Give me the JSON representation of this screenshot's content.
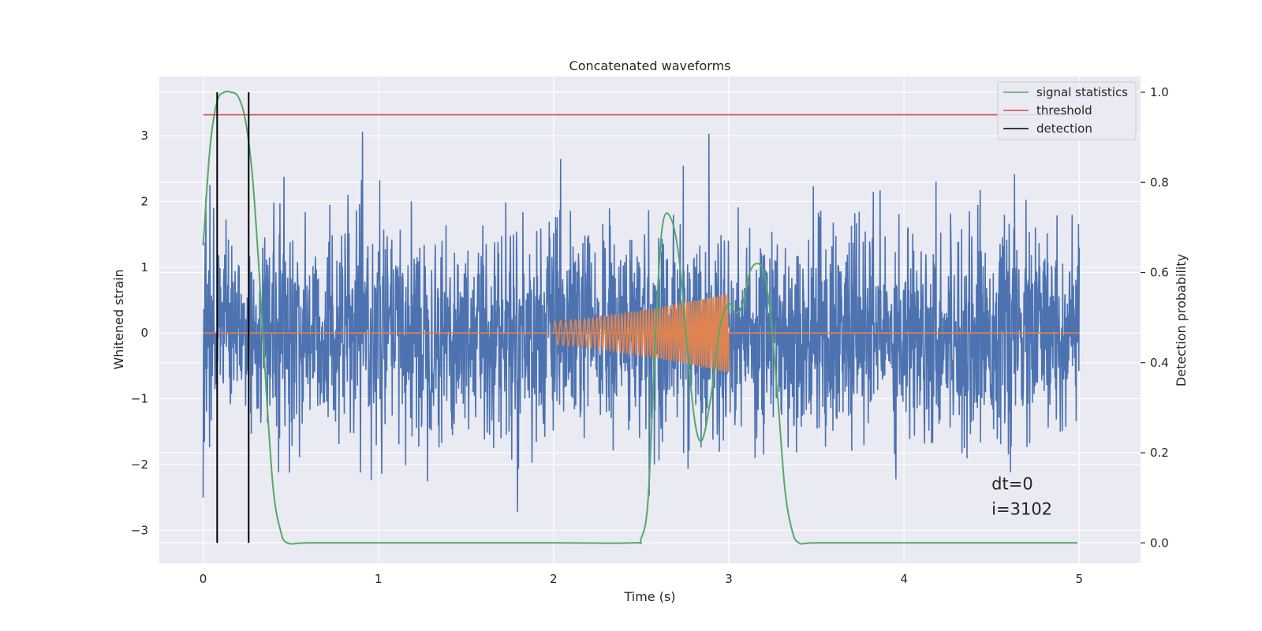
{
  "chart_data": {
    "type": "line",
    "title": "Concatenated waveforms",
    "xlabel": "Time (s)",
    "ylabel": "Whitened strain",
    "y2label": "Detection probability",
    "xlim": [
      -0.25,
      5.35
    ],
    "ylim": [
      -3.5,
      3.9
    ],
    "y2lim": [
      -0.045,
      1.035
    ],
    "x_ticks": [
      0,
      1,
      2,
      3,
      4,
      5
    ],
    "y_ticks": [
      -3,
      -2,
      -1,
      0,
      1,
      2,
      3
    ],
    "y2_ticks": [
      0.0,
      0.2,
      0.4,
      0.6,
      0.8,
      1.0
    ],
    "grid": true,
    "legend_position": "top-right",
    "colors": {
      "strain": "#4c72b0",
      "template": "#dd8452",
      "signal_statistics": "#55a868",
      "threshold": "#c44e52",
      "detection": "#000000",
      "background": "#eaeaf2"
    },
    "series": [
      {
        "name": "",
        "kind": "noise",
        "x_range": [
          0,
          5
        ],
        "approx_range": [
          -3.2,
          3.6
        ],
        "approx_std": 0.8
      },
      {
        "name": "",
        "kind": "chirp",
        "x_range": [
          2,
          3
        ],
        "flat_value": 0,
        "amplitude_start": 0.18,
        "amplitude_end": 0.6,
        "freq_start_hz": 30,
        "freq_end_hz": 90
      },
      {
        "name": "signal statistics",
        "axis": "right",
        "x": [
          0.0,
          0.04,
          0.08,
          0.12,
          0.16,
          0.2,
          0.24,
          0.28,
          0.32,
          0.36,
          0.4,
          0.44,
          0.48,
          0.6,
          1.0,
          2.0,
          2.45,
          2.5,
          2.54,
          2.58,
          2.62,
          2.67,
          2.72,
          2.77,
          2.81,
          2.85,
          2.9,
          2.95,
          3.0,
          3.04,
          3.08,
          3.12,
          3.16,
          3.2,
          3.24,
          3.28,
          3.32,
          3.36,
          3.4,
          3.5,
          4.0,
          4.5,
          4.99
        ],
        "y": [
          0.66,
          0.88,
          0.98,
          1.0,
          1.0,
          0.99,
          0.94,
          0.82,
          0.6,
          0.34,
          0.12,
          0.03,
          0.0,
          0.0,
          0.0,
          0.0,
          0.0,
          0.01,
          0.1,
          0.45,
          0.7,
          0.72,
          0.62,
          0.4,
          0.26,
          0.23,
          0.33,
          0.48,
          0.53,
          0.51,
          0.53,
          0.6,
          0.62,
          0.6,
          0.5,
          0.32,
          0.12,
          0.03,
          0.0,
          0.0,
          0.0,
          0.0,
          0.0
        ]
      },
      {
        "name": "threshold",
        "axis": "right",
        "x": [
          0,
          5
        ],
        "y": [
          0.95,
          0.95
        ]
      },
      {
        "name": "detection",
        "axis": "right",
        "x_positions": [
          0.08,
          0.26
        ],
        "y_span": [
          0.0,
          1.0
        ]
      }
    ],
    "annotations": [
      {
        "text": "dt=0",
        "x": 4.5,
        "y": -2.38
      },
      {
        "text": "i=3102",
        "x": 4.5,
        "y": -2.76
      }
    ]
  }
}
